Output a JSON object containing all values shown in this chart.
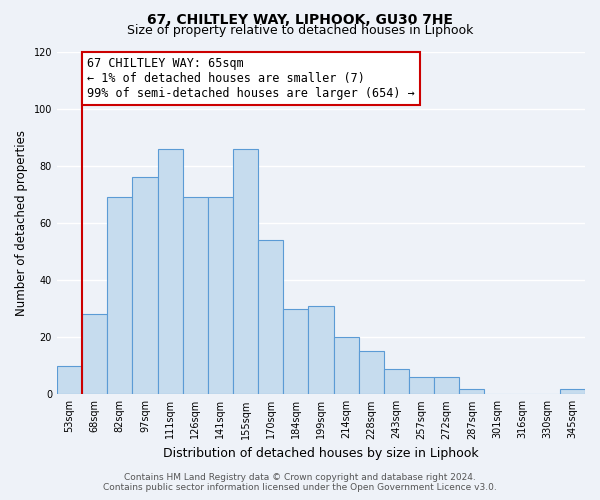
{
  "title": "67, CHILTLEY WAY, LIPHOOK, GU30 7HE",
  "subtitle": "Size of property relative to detached houses in Liphook",
  "xlabel": "Distribution of detached houses by size in Liphook",
  "ylabel": "Number of detached properties",
  "bar_labels": [
    "53sqm",
    "68sqm",
    "82sqm",
    "97sqm",
    "111sqm",
    "126sqm",
    "141sqm",
    "155sqm",
    "170sqm",
    "184sqm",
    "199sqm",
    "214sqm",
    "228sqm",
    "243sqm",
    "257sqm",
    "272sqm",
    "287sqm",
    "301sqm",
    "316sqm",
    "330sqm",
    "345sqm"
  ],
  "bar_values": [
    10,
    28,
    69,
    76,
    86,
    69,
    69,
    86,
    54,
    30,
    31,
    20,
    15,
    9,
    6,
    6,
    2,
    0,
    0,
    0,
    2
  ],
  "bar_color": "#c6dcee",
  "bar_edge_color": "#5b9bd5",
  "highlight_line_color": "#cc0000",
  "ylim": [
    0,
    120
  ],
  "yticks": [
    0,
    20,
    40,
    60,
    80,
    100,
    120
  ],
  "annotation_line1": "67 CHILTLEY WAY: 65sqm",
  "annotation_line2": "← 1% of detached houses are smaller (7)",
  "annotation_line3": "99% of semi-detached houses are larger (654) →",
  "annotation_box_color": "#ffffff",
  "annotation_box_edge_color": "#cc0000",
  "footer_line1": "Contains HM Land Registry data © Crown copyright and database right 2024.",
  "footer_line2": "Contains public sector information licensed under the Open Government Licence v3.0.",
  "background_color": "#eef2f8",
  "grid_color": "#ffffff",
  "title_fontsize": 10,
  "subtitle_fontsize": 9,
  "ylabel_fontsize": 8.5,
  "xlabel_fontsize": 9,
  "tick_fontsize": 7,
  "footer_fontsize": 6.5,
  "annotation_fontsize": 8.5
}
